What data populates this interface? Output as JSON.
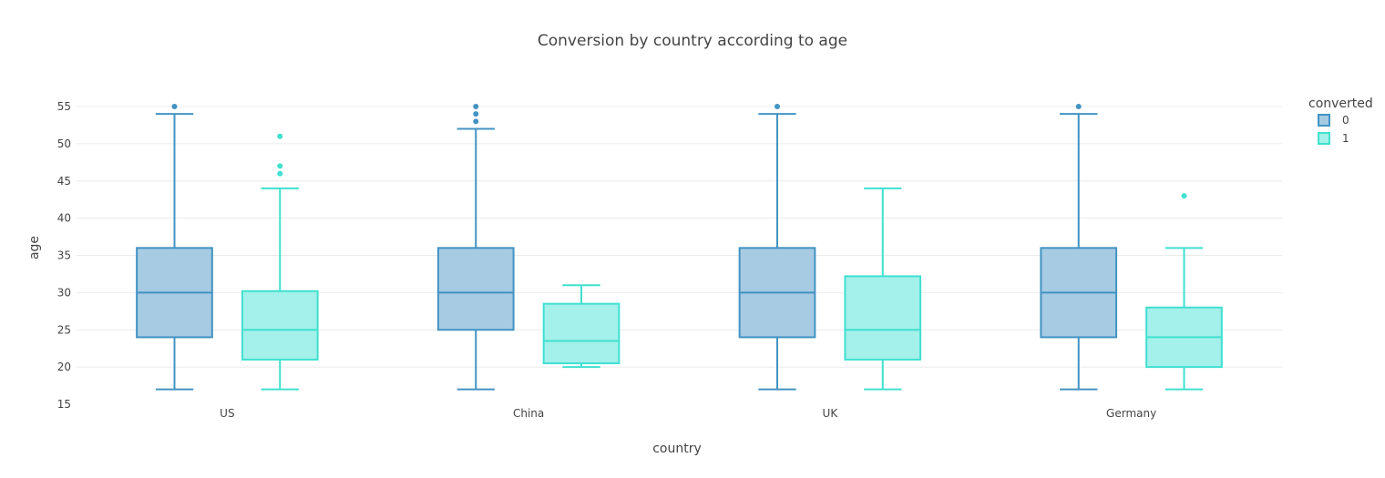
{
  "chart_data": {
    "type": "box",
    "title": "Conversion by country according to age",
    "xlabel": "country",
    "ylabel": "age",
    "ylim": [
      15,
      55
    ],
    "yticks": [
      15,
      20,
      25,
      30,
      35,
      40,
      45,
      50,
      55
    ],
    "grid": true,
    "legend": {
      "title": "converted",
      "position": "top-right"
    },
    "categories": [
      "US",
      "China",
      "UK",
      "Germany"
    ],
    "series": [
      {
        "name": "0",
        "color": "#4393c3",
        "fill": "#a6cbe3",
        "boxes": [
          {
            "category": "US",
            "min": 17,
            "q1": 24,
            "median": 30,
            "q3": 36,
            "max": 54,
            "outliers": [
              55
            ]
          },
          {
            "category": "China",
            "min": 17,
            "q1": 25,
            "median": 30,
            "q3": 36,
            "max": 52,
            "outliers": [
              53,
              54,
              55
            ]
          },
          {
            "category": "UK",
            "min": 17,
            "q1": 24,
            "median": 30,
            "q3": 36,
            "max": 54,
            "outliers": [
              55
            ]
          },
          {
            "category": "Germany",
            "min": 17,
            "q1": 24,
            "median": 30,
            "q3": 36,
            "max": 54,
            "outliers": [
              55
            ]
          }
        ]
      },
      {
        "name": "1",
        "color": "#40e0d0",
        "fill": "#a3f1ea",
        "boxes": [
          {
            "category": "US",
            "min": 17,
            "q1": 21,
            "median": 25,
            "q3": 30.2,
            "max": 44,
            "outliers": [
              46,
              47,
              51
            ]
          },
          {
            "category": "China",
            "min": 20,
            "q1": 20.5,
            "median": 23.5,
            "q3": 28.5,
            "max": 31,
            "outliers": []
          },
          {
            "category": "UK",
            "min": 17,
            "q1": 21,
            "median": 25,
            "q3": 32.2,
            "max": 44,
            "outliers": []
          },
          {
            "category": "Germany",
            "min": 17,
            "q1": 20,
            "median": 24,
            "q3": 28,
            "max": 36,
            "outliers": [
              43
            ]
          }
        ]
      }
    ]
  }
}
